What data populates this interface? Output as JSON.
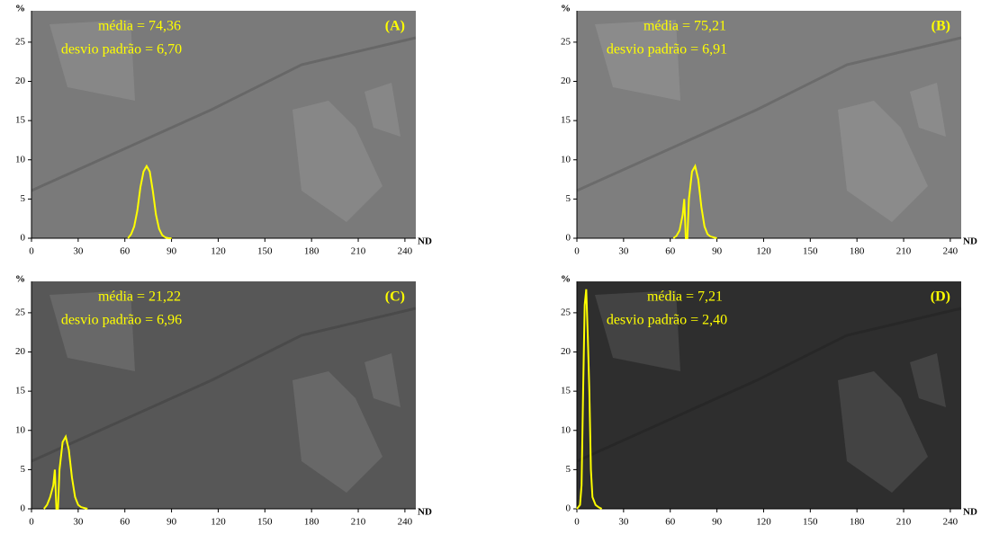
{
  "chart_data": [
    {
      "type": "line",
      "title": "(A)",
      "mean_label": "média = 74,36",
      "sd_label": "desvio padrão = 6,70",
      "ylabel": "%",
      "xlabel": "ND",
      "image_color": "#7a7a7a",
      "color": "#ffff00",
      "x": [
        62,
        64,
        66,
        68,
        70,
        72,
        74,
        76,
        78,
        80,
        82,
        84,
        86,
        88,
        90
      ],
      "values": [
        0,
        0.5,
        1.5,
        3.5,
        6.5,
        8.5,
        9.2,
        8.5,
        6,
        3,
        1.2,
        0.4,
        0.1,
        0,
        0
      ],
      "xlim": [
        0,
        247
      ],
      "ylim": [
        0,
        29
      ],
      "xticks": [
        0,
        30,
        60,
        90,
        120,
        150,
        180,
        210,
        240
      ],
      "yticks": [
        0,
        5,
        10,
        15,
        20,
        25
      ]
    },
    {
      "type": "line",
      "title": "(B)",
      "mean_label": "média = 75,21",
      "sd_label": "desvio padrão = 6,91",
      "ylabel": "%",
      "xlabel": "ND",
      "image_color": "#7e7e7e",
      "color": "#ffff00",
      "x": [
        62,
        64,
        66,
        68,
        69,
        70,
        71,
        72,
        74,
        76,
        78,
        80,
        82,
        84,
        86,
        88,
        90
      ],
      "values": [
        0,
        0.3,
        1,
        3,
        5,
        0,
        0,
        5,
        8.5,
        9.2,
        7.5,
        4,
        1.5,
        0.5,
        0.2,
        0.1,
        0
      ],
      "xlim": [
        0,
        247
      ],
      "ylim": [
        0,
        29
      ],
      "xticks": [
        0,
        30,
        60,
        90,
        120,
        150,
        180,
        210,
        240
      ],
      "yticks": [
        0,
        5,
        10,
        15,
        20,
        25
      ]
    },
    {
      "type": "line",
      "title": "(C)",
      "mean_label": "média = 21,22",
      "sd_label": "desvio padrão = 6,96",
      "ylabel": "%",
      "xlabel": "ND",
      "image_color": "#575757",
      "color": "#ffff00",
      "x": [
        8,
        10,
        12,
        14,
        15,
        16,
        17,
        18,
        20,
        22,
        24,
        26,
        28,
        30,
        32,
        34,
        36
      ],
      "values": [
        0,
        0.5,
        1.5,
        3,
        5,
        0,
        0,
        5,
        8.5,
        9.2,
        7.5,
        4,
        1.5,
        0.5,
        0.2,
        0.1,
        0
      ],
      "xlim": [
        0,
        247
      ],
      "ylim": [
        0,
        29
      ],
      "xticks": [
        0,
        30,
        60,
        90,
        120,
        150,
        180,
        210,
        240
      ],
      "yticks": [
        0,
        5,
        10,
        15,
        20,
        25
      ]
    },
    {
      "type": "line",
      "title": "(D)",
      "mean_label": "média = 7,21",
      "sd_label": "desvio padrão = 2,40",
      "ylabel": "%",
      "xlabel": "ND",
      "image_color": "#2e2e2e",
      "color": "#ffff00",
      "x": [
        0,
        2,
        3,
        4,
        5,
        6,
        7,
        8,
        9,
        10,
        11,
        12,
        14,
        16
      ],
      "values": [
        0,
        0.5,
        3,
        15,
        26,
        28,
        22,
        15,
        5,
        1.5,
        1,
        0.5,
        0.2,
        0
      ],
      "xlim": [
        0,
        247
      ],
      "ylim": [
        0,
        29
      ],
      "xticks": [
        0,
        30,
        60,
        90,
        120,
        150,
        180,
        210,
        240
      ],
      "yticks": [
        0,
        5,
        10,
        15,
        20,
        25
      ]
    }
  ]
}
